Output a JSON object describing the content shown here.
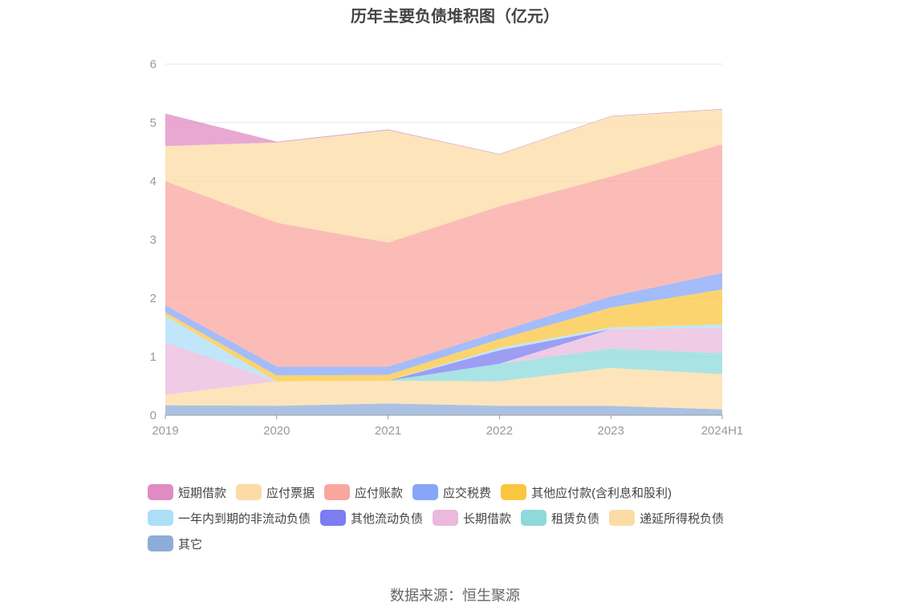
{
  "chart_data": {
    "type": "area",
    "stacked": true,
    "title": "历年主要负债堆积图（亿元）",
    "categories": [
      "2019",
      "2020",
      "2021",
      "2022",
      "2023",
      "2024H1"
    ],
    "ylim": [
      0,
      6
    ],
    "yticks": [
      "0",
      "1",
      "2",
      "3",
      "4",
      "5",
      "6"
    ],
    "grid": true,
    "legend_position": "bottom",
    "series": [
      {
        "name": "其它",
        "color": "#8eacd9",
        "values": [
          0.17,
          0.16,
          0.2,
          0.16,
          0.16,
          0.1
        ]
      },
      {
        "name": "递延所得税负债",
        "color": "#fcdba4",
        "values": [
          0.18,
          0.42,
          0.39,
          0.42,
          0.65,
          0.6
        ]
      },
      {
        "name": "租赁负债",
        "color": "#8ed9db",
        "values": [
          0.0,
          0.0,
          0.0,
          0.3,
          0.33,
          0.36
        ]
      },
      {
        "name": "长期借款",
        "color": "#eab9dc",
        "values": [
          0.9,
          0.0,
          0.0,
          0.0,
          0.33,
          0.43
        ]
      },
      {
        "name": "其他流动负债",
        "color": "#7b7df0",
        "values": [
          0.0,
          0.0,
          0.0,
          0.23,
          0.0,
          0.0
        ]
      },
      {
        "name": "一年内到期的非流动负债",
        "color": "#acdef8",
        "values": [
          0.45,
          0.0,
          0.0,
          0.04,
          0.03,
          0.06
        ]
      },
      {
        "name": "其他应付款(含利息和股利)",
        "color": "#fbc63f",
        "values": [
          0.06,
          0.1,
          0.1,
          0.15,
          0.34,
          0.6
        ]
      },
      {
        "name": "应交税费",
        "color": "#86a6f8",
        "values": [
          0.12,
          0.15,
          0.14,
          0.13,
          0.19,
          0.28
        ]
      },
      {
        "name": "应付账款",
        "color": "#f9a69f",
        "values": [
          2.12,
          2.46,
          2.12,
          2.14,
          2.05,
          2.2
        ]
      },
      {
        "name": "应付票据",
        "color": "#fcdba4",
        "values": [
          0.6,
          1.37,
          1.92,
          0.89,
          1.03,
          0.6
        ]
      },
      {
        "name": "短期借款",
        "color": "#e08bc3",
        "values": [
          0.55,
          0.01,
          0.01,
          0.0,
          0.0,
          0.0
        ]
      }
    ]
  },
  "legend": {
    "rows": [
      [
        {
          "label": "短期借款",
          "color": "#e08bc3"
        },
        {
          "label": "应付票据",
          "color": "#fcdba4"
        },
        {
          "label": "应付账款",
          "color": "#f9a69f"
        },
        {
          "label": "应交税费",
          "color": "#86a6f8"
        },
        {
          "label": "其他应付款(含利息和股利)",
          "color": "#fbc63f"
        }
      ],
      [
        {
          "label": "一年内到期的非流动负债",
          "color": "#acdef8"
        },
        {
          "label": "其他流动负债",
          "color": "#7b7df0"
        },
        {
          "label": "长期借款",
          "color": "#eab9dc"
        },
        {
          "label": "租赁负债",
          "color": "#8ed9db"
        },
        {
          "label": "递延所得税负债",
          "color": "#fcdba4"
        }
      ],
      [
        {
          "label": "其它",
          "color": "#8eacd9"
        }
      ]
    ]
  },
  "source": "数据来源：恒生聚源"
}
